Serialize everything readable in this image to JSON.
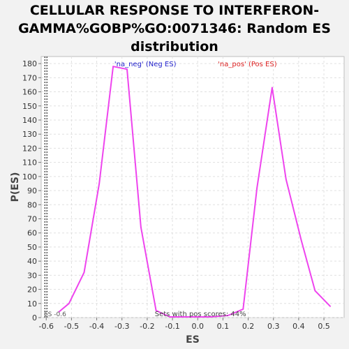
{
  "chart_data": {
    "type": "line",
    "title_lines": [
      "CELLULAR RESPONSE TO INTERFERON-",
      "GAMMA%GOBP%GO:0071346: Random ES",
      "distribution"
    ],
    "xlabel": "ES",
    "ylabel": "P(ES)",
    "xlim": [
      -0.62,
      0.58
    ],
    "ylim": [
      0,
      185
    ],
    "xticks": [
      -0.6,
      -0.5,
      -0.4,
      -0.3,
      -0.2,
      -0.1,
      0.0,
      0.1,
      0.2,
      0.3,
      0.4,
      0.5
    ],
    "xtick_labels": [
      "-0.6",
      "-0.5",
      "-0.4",
      "-0.3",
      "-0.2",
      "-0.1",
      "0.0",
      "0.1",
      "0.2",
      "0.3",
      "0.4",
      "0.5"
    ],
    "yticks": [
      0,
      10,
      20,
      30,
      40,
      50,
      60,
      70,
      80,
      90,
      100,
      110,
      120,
      130,
      140,
      150,
      160,
      170,
      180
    ],
    "grid": true,
    "series": [
      {
        "name": "distribution",
        "color": "#ee44ee",
        "points": [
          [
            -0.55,
            4
          ],
          [
            -0.51,
            10
          ],
          [
            -0.45,
            32
          ],
          [
            -0.39,
            95
          ],
          [
            -0.335,
            178
          ],
          [
            -0.28,
            176
          ],
          [
            -0.225,
            64
          ],
          [
            -0.165,
            5
          ],
          [
            -0.11,
            0.5
          ],
          [
            -0.05,
            0.5
          ],
          [
            0.0,
            0.5
          ],
          [
            0.05,
            0.5
          ],
          [
            0.12,
            1.5
          ],
          [
            0.18,
            6
          ],
          [
            0.235,
            92
          ],
          [
            0.295,
            163
          ],
          [
            0.35,
            98
          ],
          [
            0.41,
            55
          ],
          [
            0.465,
            19
          ],
          [
            0.525,
            8
          ]
        ]
      }
    ],
    "annotations": {
      "neg_label": "'na_neg' (Neg ES)",
      "neg_color": "#2222cc",
      "pos_label": "'na_pos' (Pos ES)",
      "pos_color": "#dd2222",
      "es_marker_label": "ES -0.6",
      "es_marker_value": -0.6,
      "footer": "Sets with pos scores: 44%"
    }
  }
}
